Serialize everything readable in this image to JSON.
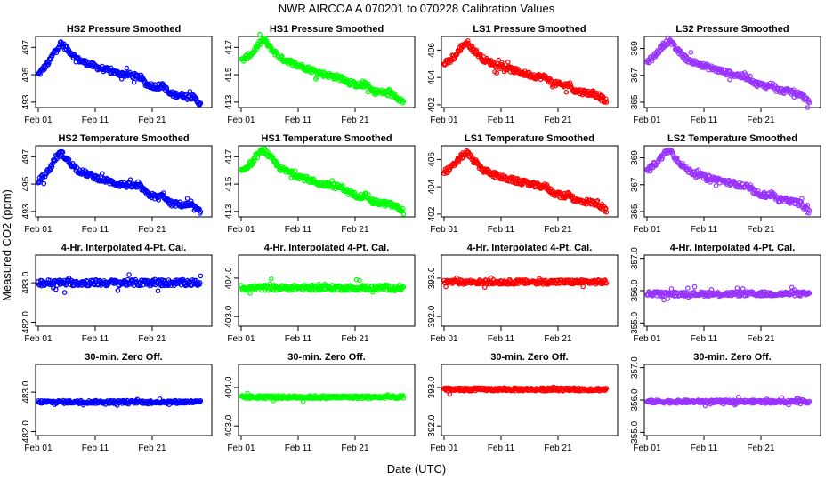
{
  "figure": {
    "title": "NWR   AIRCOA A   070201 to 070228   Calibration Values",
    "xlabel": "Date (UTC)",
    "ylabel": "Measured CO2 (ppm)"
  },
  "chart_data": [
    {
      "type": "scatter",
      "title": "HS2 Pressure Smoothed",
      "color": "#0000ff",
      "xticks": [
        "Feb 01",
        "Feb 11",
        "Feb 21"
      ],
      "yticks": [
        493,
        495,
        497
      ],
      "ylim": [
        492.6,
        497.8
      ],
      "xlim": [
        0,
        30
      ],
      "trend": {
        "x": [
          0,
          1,
          2,
          3,
          4,
          5,
          7,
          10,
          14,
          16,
          18,
          19,
          21,
          22,
          23,
          25,
          27,
          28.5
        ],
        "y": [
          495.0,
          495.5,
          496.0,
          496.8,
          497.3,
          496.9,
          496.1,
          495.6,
          495.1,
          495.0,
          494.8,
          494.3,
          494.1,
          494.2,
          493.6,
          493.5,
          493.4,
          492.9
        ]
      },
      "noise": 0.2
    },
    {
      "type": "scatter",
      "title": "HS1 Pressure Smoothed",
      "color": "#00ff00",
      "xticks": [
        "Feb 01",
        "Feb 11",
        "Feb 21"
      ],
      "yticks": [
        413,
        415,
        417
      ],
      "ylim": [
        412.6,
        417.8
      ],
      "xlim": [
        0,
        30
      ],
      "trend": {
        "x": [
          0,
          1,
          2,
          3,
          4,
          5,
          7,
          10,
          14,
          16,
          18,
          19,
          21,
          22,
          23,
          25,
          27,
          28.5
        ],
        "y": [
          416.0,
          416.3,
          416.6,
          417.2,
          417.6,
          417.0,
          416.2,
          415.7,
          415.1,
          414.9,
          414.7,
          414.4,
          414.2,
          414.3,
          413.8,
          413.7,
          413.5,
          413.0
        ]
      },
      "noise": 0.2
    },
    {
      "type": "scatter",
      "title": "LS1 Pressure Smoothed",
      "color": "#ff0000",
      "xticks": [
        "Feb 01",
        "Feb 11",
        "Feb 21"
      ],
      "yticks": [
        402,
        404,
        406
      ],
      "ylim": [
        401.8,
        407.0
      ],
      "xlim": [
        0,
        30
      ],
      "trend": {
        "x": [
          0,
          1,
          2,
          3,
          4,
          5,
          7,
          10,
          14,
          16,
          18,
          19,
          21,
          22,
          23,
          25,
          27,
          28.5
        ],
        "y": [
          405.0,
          405.2,
          405.6,
          406.2,
          406.6,
          406.1,
          405.3,
          404.8,
          404.3,
          404.1,
          404.0,
          403.6,
          403.4,
          403.5,
          403.0,
          402.9,
          402.7,
          402.2
        ]
      },
      "noise": 0.2
    },
    {
      "type": "scatter",
      "title": "LS2 Pressure Smoothed",
      "color": "#9933ff",
      "xticks": [
        "Feb 01",
        "Feb 11",
        "Feb 21"
      ],
      "yticks": [
        365,
        367,
        369
      ],
      "ylim": [
        364.6,
        369.9
      ],
      "xlim": [
        0,
        30
      ],
      "trend": {
        "x": [
          0,
          1,
          2,
          3,
          4,
          5,
          7,
          10,
          14,
          16,
          18,
          19,
          21,
          22,
          23,
          25,
          27,
          28.5
        ],
        "y": [
          368.0,
          368.3,
          368.8,
          369.3,
          369.6,
          369.0,
          368.2,
          367.7,
          367.2,
          367.0,
          366.8,
          366.4,
          366.2,
          366.3,
          365.9,
          365.8,
          365.6,
          364.9
        ]
      },
      "noise": 0.2
    },
    {
      "type": "scatter",
      "title": "HS2 Temperature Smoothed",
      "color": "#0000ff",
      "xticks": [
        "Feb 01",
        "Feb 11",
        "Feb 21"
      ],
      "yticks": [
        493,
        495,
        497
      ],
      "ylim": [
        492.6,
        497.8
      ],
      "xlim": [
        0,
        30
      ],
      "trend": {
        "x": [
          0,
          1,
          2,
          3,
          4,
          5,
          7,
          10,
          14,
          16,
          18,
          19,
          21,
          22,
          23,
          25,
          27,
          28.5
        ],
        "y": [
          495.2,
          495.6,
          496.1,
          496.9,
          497.3,
          496.8,
          496.0,
          495.5,
          495.0,
          494.9,
          494.8,
          494.3,
          494.0,
          494.2,
          493.6,
          493.5,
          493.4,
          492.9
        ]
      },
      "noise": 0.2
    },
    {
      "type": "scatter",
      "title": "HS1 Temperature Smoothed",
      "color": "#00ff00",
      "xticks": [
        "Feb 01",
        "Feb 11",
        "Feb 21"
      ],
      "yticks": [
        413,
        415,
        417
      ],
      "ylim": [
        412.6,
        417.8
      ],
      "xlim": [
        0,
        30
      ],
      "trend": {
        "x": [
          0,
          1,
          2,
          3,
          4,
          5,
          7,
          10,
          14,
          16,
          18,
          19,
          21,
          22,
          23,
          25,
          27,
          28.5
        ],
        "y": [
          416.0,
          416.3,
          416.6,
          417.2,
          417.5,
          417.0,
          416.1,
          415.6,
          415.0,
          414.9,
          414.7,
          414.3,
          414.1,
          414.2,
          413.7,
          413.6,
          413.4,
          413.0
        ]
      },
      "noise": 0.2
    },
    {
      "type": "scatter",
      "title": "LS1 Temperature Smoothed",
      "color": "#ff0000",
      "xticks": [
        "Feb 01",
        "Feb 11",
        "Feb 21"
      ],
      "yticks": [
        402,
        404,
        406
      ],
      "ylim": [
        401.8,
        407.0
      ],
      "xlim": [
        0,
        30
      ],
      "trend": {
        "x": [
          0,
          1,
          2,
          3,
          4,
          5,
          7,
          10,
          14,
          16,
          18,
          19,
          21,
          22,
          23,
          25,
          27,
          28.5
        ],
        "y": [
          405.1,
          405.3,
          405.7,
          406.2,
          406.5,
          406.0,
          405.2,
          404.7,
          404.3,
          404.1,
          404.0,
          403.6,
          403.3,
          403.5,
          403.0,
          402.9,
          402.8,
          402.2
        ]
      },
      "noise": 0.2
    },
    {
      "type": "scatter",
      "title": "LS2 Temperature Smoothed",
      "color": "#9933ff",
      "xticks": [
        "Feb 01",
        "Feb 11",
        "Feb 21"
      ],
      "yticks": [
        365,
        367,
        369
      ],
      "ylim": [
        364.6,
        369.9
      ],
      "xlim": [
        0,
        30
      ],
      "trend": {
        "x": [
          0,
          1,
          2,
          3,
          4,
          5,
          7,
          10,
          14,
          16,
          18,
          19,
          21,
          22,
          23,
          25,
          27,
          28.5
        ],
        "y": [
          368.1,
          368.4,
          368.8,
          369.3,
          369.6,
          369.0,
          368.1,
          367.6,
          367.2,
          367.0,
          366.8,
          366.4,
          366.2,
          366.3,
          365.9,
          365.8,
          365.6,
          364.9
        ]
      },
      "noise": 0.2
    },
    {
      "type": "scatter",
      "title": "4-Hr. Interpolated 4-Pt. Cal.",
      "color": "#0000ff",
      "xticks": [
        "Feb 01",
        "Feb 11",
        "Feb 21"
      ],
      "yticks": [
        "482.0",
        "483.0"
      ],
      "ytickvals": [
        482.0,
        483.0
      ],
      "ylim": [
        481.9,
        483.7
      ],
      "xlim": [
        0,
        30
      ],
      "trend": {
        "x": [
          0,
          28.5
        ],
        "y": [
          483.0,
          483.0
        ]
      },
      "noise": 0.08
    },
    {
      "type": "scatter",
      "title": "4-Hr. Interpolated 4-Pt. Cal.",
      "color": "#00ff00",
      "xticks": [
        "Feb 01",
        "Feb 11",
        "Feb 21"
      ],
      "yticks": [
        "403.0",
        "404.0"
      ],
      "ytickvals": [
        403.0,
        404.0
      ],
      "ylim": [
        402.75,
        404.6
      ],
      "xlim": [
        0,
        30
      ],
      "trend": {
        "x": [
          0,
          28.5
        ],
        "y": [
          403.75,
          403.75
        ]
      },
      "noise": 0.07
    },
    {
      "type": "scatter",
      "title": "4-Hr. Interpolated 4-Pt. Cal.",
      "color": "#ff0000",
      "xticks": [
        "Feb 01",
        "Feb 11",
        "Feb 21"
      ],
      "yticks": [
        "392.0",
        "393.0"
      ],
      "ytickvals": [
        392.0,
        393.0
      ],
      "ylim": [
        391.75,
        393.6
      ],
      "xlim": [
        0,
        30
      ],
      "trend": {
        "x": [
          0,
          28.5
        ],
        "y": [
          392.9,
          392.9
        ]
      },
      "noise": 0.06
    },
    {
      "type": "scatter",
      "title": "4-Hr. Interpolated 4-Pt. Cal.",
      "color": "#9933ff",
      "xticks": [
        "Feb 01",
        "Feb 11",
        "Feb 21"
      ],
      "yticks": [
        "355.0",
        "356.0",
        "357.0"
      ],
      "ytickvals": [
        355.0,
        356.0,
        357.0
      ],
      "ylim": [
        354.9,
        357.1
      ],
      "xlim": [
        0,
        30
      ],
      "trend": {
        "x": [
          0,
          28.5
        ],
        "y": [
          355.9,
          355.9
        ]
      },
      "noise": 0.07
    },
    {
      "type": "scatter",
      "title": "30-min. Zero Off.",
      "color": "#0000ff",
      "xticks": [
        "Feb 01",
        "Feb 11",
        "Feb 21"
      ],
      "yticks": [
        "482.0",
        "483.0"
      ],
      "ytickvals": [
        482.0,
        483.0
      ],
      "ylim": [
        481.9,
        483.7
      ],
      "xlim": [
        0,
        30
      ],
      "trend": {
        "x": [
          0,
          28.5
        ],
        "y": [
          482.75,
          482.75
        ]
      },
      "noise": 0.04
    },
    {
      "type": "scatter",
      "title": "30-min. Zero Off.",
      "color": "#00ff00",
      "xticks": [
        "Feb 01",
        "Feb 11",
        "Feb 21"
      ],
      "yticks": [
        "403.0",
        "404.0"
      ],
      "ytickvals": [
        403.0,
        404.0
      ],
      "ylim": [
        402.75,
        404.6
      ],
      "xlim": [
        0,
        30
      ],
      "trend": {
        "x": [
          0,
          28.5
        ],
        "y": [
          403.75,
          403.75
        ]
      },
      "noise": 0.04
    },
    {
      "type": "scatter",
      "title": "30-min. Zero Off.",
      "color": "#ff0000",
      "xticks": [
        "Feb 01",
        "Feb 11",
        "Feb 21"
      ],
      "yticks": [
        "392.0",
        "393.0"
      ],
      "ytickvals": [
        392.0,
        393.0
      ],
      "ylim": [
        391.75,
        393.6
      ],
      "xlim": [
        0,
        30
      ],
      "trend": {
        "x": [
          0,
          28.5
        ],
        "y": [
          392.95,
          392.95
        ]
      },
      "noise": 0.04
    },
    {
      "type": "scatter",
      "title": "30-min. Zero Off.",
      "color": "#9933ff",
      "xticks": [
        "Feb 01",
        "Feb 11",
        "Feb 21"
      ],
      "yticks": [
        "355.0",
        "356.0",
        "357.0"
      ],
      "ytickvals": [
        355.0,
        356.0,
        357.0
      ],
      "ylim": [
        354.9,
        357.1
      ],
      "xlim": [
        0,
        30
      ],
      "trend": {
        "x": [
          0,
          28.5
        ],
        "y": [
          355.95,
          355.95
        ]
      },
      "noise": 0.05
    }
  ]
}
